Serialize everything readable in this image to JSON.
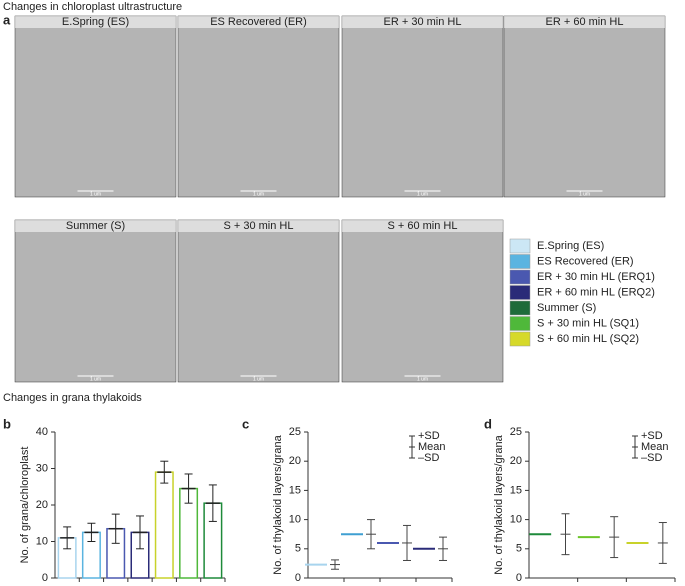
{
  "panel_a": {
    "label": "a",
    "title": "Changes in chloroplast ultrastructure",
    "images": [
      {
        "title": "E.Spring (ES)",
        "scale": "1 um"
      },
      {
        "title": "ES Recovered (ER)",
        "scale": "1 um"
      },
      {
        "title": "ER + 30 min  HL",
        "scale": "1 um"
      },
      {
        "title": "ER + 60 min HL",
        "scale": "1 um"
      },
      {
        "title": "Summer (S)",
        "scale": "1 um"
      },
      {
        "title": "S + 30 min HL",
        "scale": "1 um"
      },
      {
        "title": "S + 60 min HL",
        "scale": "1 um"
      }
    ]
  },
  "legend": [
    {
      "name": "E.Spring (ES)",
      "color": "#cce7f5"
    },
    {
      "name": "ES Recovered (ER)",
      "color": "#5ab4e0"
    },
    {
      "name": "ER + 30 min HL (ERQ1)",
      "color": "#4a58b0"
    },
    {
      "name": "ER + 60 min HL (ERQ2)",
      "color": "#2a2b78"
    },
    {
      "name": "Summer (S)",
      "color": "#1e6b3a"
    },
    {
      "name": "S + 30 min HL (SQ1)",
      "color": "#4fb83a"
    },
    {
      "name": "S + 60 min HL (SQ2)",
      "color": "#d6d92a"
    }
  ],
  "section_title": "Changes in grana thylakoids",
  "chart_data": [
    {
      "type": "bar",
      "label": "b",
      "y_label": "No. of grana/chloroplast",
      "categories": [
        null,
        null,
        null,
        null,
        null,
        null,
        null
      ],
      "values": [
        11,
        12.5,
        13.5,
        12.5,
        29,
        24.5,
        20.5
      ],
      "errors": [
        3,
        2.5,
        4,
        4.5,
        3,
        4,
        5
      ],
      "colors": [
        "#a8d4ee",
        "#5ab4e0",
        "#4a58b0",
        "#2a2b78",
        "#c8d22a",
        "#4fb83a",
        "#1e8a3a"
      ],
      "ylim": [
        0,
        40
      ],
      "yticks": [
        0,
        10,
        20,
        30,
        40
      ]
    },
    {
      "type": "meansd",
      "label": "c",
      "y_label": "No. of thylakoid layers/grana",
      "key": [
        "+SD",
        "Mean",
        "–SD"
      ],
      "categories": [
        null,
        null,
        null,
        null
      ],
      "values": [
        2.3,
        7.5,
        6,
        5
      ],
      "errors": [
        0.8,
        2.5,
        3,
        2
      ],
      "colors": [
        "#a8d4ee",
        "#3f9fd2",
        "#4a58b0",
        "#2a2b78"
      ],
      "ylim": [
        0,
        25
      ],
      "yticks": [
        0,
        5,
        10,
        15,
        20,
        25
      ]
    },
    {
      "type": "meansd",
      "label": "d",
      "y_label": "No. of thylakoid layers/grana",
      "key": [
        "+SD",
        "Mean",
        "–SD"
      ],
      "categories": [
        null,
        null,
        null
      ],
      "values": [
        7.5,
        7,
        6
      ],
      "errors": [
        3.5,
        3.5,
        3.5
      ],
      "colors": [
        "#1e8a3a",
        "#6cc52a",
        "#c8d22a"
      ],
      "ylim": [
        0,
        25
      ],
      "yticks": [
        0,
        5,
        10,
        15,
        20,
        25
      ]
    }
  ]
}
